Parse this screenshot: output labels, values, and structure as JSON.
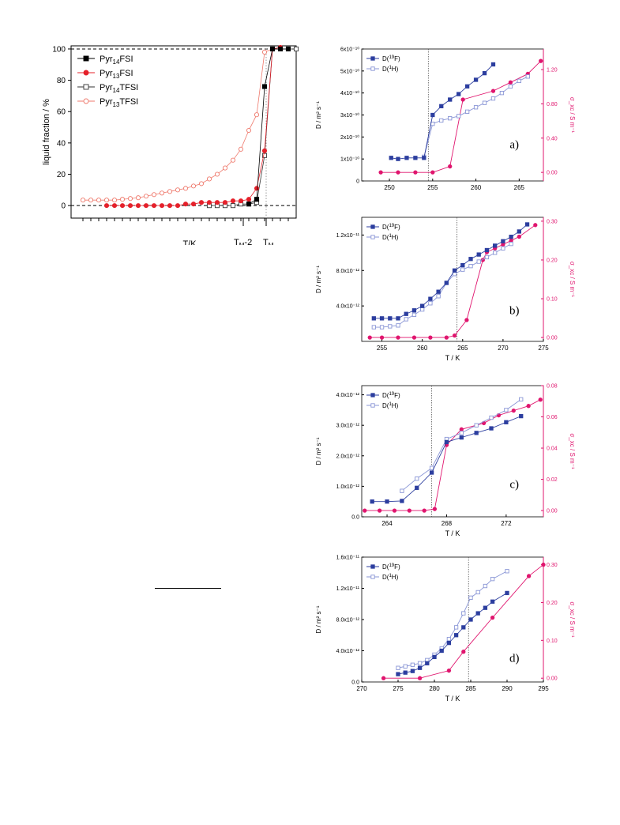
{
  "colors": {
    "black": "#000000",
    "red": "#e5202a",
    "blue": "#2c3e9f",
    "lightblue": "#8a96d6",
    "magenta": "#e0156e",
    "salmon": "#ef7a6d"
  },
  "chart_data": [
    {
      "id": "main",
      "type": "line",
      "ylabel": "liquid fraction / %",
      "xlabel": "T/K",
      "yticks": [
        0,
        20,
        40,
        60,
        80,
        100
      ],
      "ylim": [
        -8,
        102
      ],
      "x_marker_labels": {
        "tm2": "T",
        "tm2_sub": "M",
        "tm2_suffix": "-2",
        "tm": "T",
        "tm_sub": "M"
      },
      "legend": [
        "Pyr14FSI",
        "Pyr13FSI",
        "Pyr14TFSI",
        "Pyr13TFSI"
      ],
      "legend_parts": [
        {
          "pre": "Pyr",
          "sub": "14",
          "post": "FSI"
        },
        {
          "pre": "Pyr",
          "sub": "13",
          "post": "FSI"
        },
        {
          "pre": "Pyr",
          "sub": "14",
          "post": "TFSI"
        },
        {
          "pre": "Pyr",
          "sub": "13",
          "post": "TFSI"
        }
      ],
      "series": [
        {
          "name": "Pyr14FSI",
          "x": [
            21,
            22,
            23,
            24,
            25,
            26
          ],
          "y": [
            1,
            4,
            76,
            100,
            100,
            100
          ]
        },
        {
          "name": "Pyr13FSI",
          "x": [
            3,
            4,
            5,
            6,
            7,
            8,
            9,
            10,
            11,
            12,
            13,
            14,
            15,
            16,
            17,
            18,
            19,
            20,
            21,
            22,
            23,
            24,
            25
          ],
          "y": [
            0,
            0,
            0,
            0,
            0,
            0,
            0,
            0,
            0,
            0,
            1,
            1,
            2,
            2,
            2,
            2,
            3,
            3,
            4,
            11,
            35,
            100,
            101
          ]
        },
        {
          "name": "Pyr14TFSI",
          "x": [
            16,
            17,
            18,
            19,
            20,
            21,
            22,
            23,
            24,
            25,
            26,
            27
          ],
          "y": [
            0,
            0,
            0,
            0,
            1,
            1,
            2,
            32,
            100,
            100,
            100,
            100
          ]
        },
        {
          "name": "Pyr13TFSI",
          "x": [
            0,
            1,
            2,
            3,
            4,
            5,
            6,
            7,
            8,
            9,
            10,
            11,
            12,
            13,
            14,
            15,
            16,
            17,
            18,
            19,
            20,
            21,
            22,
            23,
            24,
            25
          ],
          "y": [
            3.5,
            3.5,
            3.5,
            3.5,
            3.5,
            4,
            4.5,
            5,
            6,
            7,
            8,
            9,
            10,
            11,
            12.5,
            14,
            17,
            20,
            24,
            29,
            36,
            48,
            58,
            98,
            100,
            100
          ]
        }
      ]
    },
    {
      "id": "a",
      "type": "line",
      "panel_label": "a)",
      "xlabel": "T / K",
      "ylabel": "D / m² s⁻¹",
      "y2label": "σ_xc / S m⁻¹",
      "xlim": [
        246.8,
        267.8
      ],
      "xticks": [
        250,
        255,
        260,
        265
      ],
      "ylim": [
        0,
        6e-10
      ],
      "yticks_labels": [
        "0",
        "1x10⁻¹⁰",
        "2x10⁻¹⁰",
        "3x10⁻¹⁰",
        "4x10⁻¹⁰",
        "5x10⁻¹⁰",
        "6x10⁻¹⁰"
      ],
      "yticks_values": [
        0,
        1e-10,
        2e-10,
        3e-10,
        4e-10,
        5e-10,
        6e-10
      ],
      "y2lim": [
        -0.1,
        1.44
      ],
      "y2ticks": [
        "0.00",
        "0.40",
        "0.80",
        "1.20"
      ],
      "y2ticks_values": [
        0,
        0.4,
        0.8,
        1.2
      ],
      "vline": 254.5,
      "legend": [
        "D(19F)",
        "D(1H)"
      ],
      "series": [
        {
          "name": "D(19F)",
          "x": [
            250.2,
            251,
            252,
            253,
            254,
            255,
            256,
            257,
            258,
            259,
            260,
            261,
            262
          ],
          "y": [
            1.05e-10,
            1e-10,
            1.05e-10,
            1.05e-10,
            1.05e-10,
            3e-10,
            3.4e-10,
            3.7e-10,
            3.95e-10,
            4.3e-10,
            4.6e-10,
            4.9e-10,
            5.3e-10
          ]
        },
        {
          "name": "D(1H)",
          "x": [
            254,
            255,
            256,
            257,
            258,
            259,
            260,
            261,
            262,
            263,
            264,
            265,
            266
          ],
          "y": [
            1.1e-10,
            2.6e-10,
            2.75e-10,
            2.85e-10,
            2.95e-10,
            3.15e-10,
            3.35e-10,
            3.55e-10,
            3.75e-10,
            4e-10,
            4.3e-10,
            4.55e-10,
            4.75e-10
          ]
        },
        {
          "name": "sigma",
          "x": [
            249,
            251,
            253,
            255,
            257,
            258.5,
            262,
            264,
            266,
            267.5
          ],
          "y": [
            0,
            0,
            0,
            0,
            0.07,
            0.85,
            0.95,
            1.05,
            1.15,
            1.3
          ]
        }
      ]
    },
    {
      "id": "b",
      "type": "line",
      "panel_label": "b)",
      "xlabel": "T / K",
      "ylabel": "D / m² s⁻¹",
      "y2label": "σ_xc / S m⁻¹",
      "xlim": [
        252.5,
        275
      ],
      "xticks": [
        255,
        260,
        265,
        270,
        275
      ],
      "ylim": [
        0,
        1.4e-11
      ],
      "yticks_labels": [
        "4.0x10⁻¹²",
        "8.0x10⁻¹²",
        "1.2x10⁻¹¹"
      ],
      "yticks_values": [
        4e-12,
        8e-12,
        1.2e-11
      ],
      "y2lim": [
        -0.01,
        0.31
      ],
      "y2ticks": [
        "0.00",
        "0.10",
        "0.20",
        "0.30"
      ],
      "y2ticks_values": [
        0,
        0.1,
        0.2,
        0.3
      ],
      "vline": 264.3,
      "legend": [
        "D(19F)",
        "D(1H)"
      ],
      "series": [
        {
          "name": "D(19F)",
          "x": [
            254,
            255,
            256,
            257,
            258,
            259,
            260,
            261,
            262,
            263,
            264,
            265,
            266,
            267,
            268,
            269,
            270,
            271,
            272,
            273
          ],
          "y": [
            2.6e-12,
            2.6e-12,
            2.6e-12,
            2.6e-12,
            3.1e-12,
            3.5e-12,
            4e-12,
            4.8e-12,
            5.6e-12,
            6.6e-12,
            8e-12,
            8.6e-12,
            9.3e-12,
            9.8e-12,
            1.03e-11,
            1.08e-11,
            1.13e-11,
            1.18e-11,
            1.24e-11,
            1.32e-11
          ]
        },
        {
          "name": "D(1H)",
          "x": [
            254,
            255,
            256,
            257,
            258,
            259,
            260,
            261,
            262,
            263,
            264,
            265,
            266,
            267,
            268,
            269,
            270,
            271
          ],
          "y": [
            1.6e-12,
            1.6e-12,
            1.7e-12,
            1.8e-12,
            2.5e-12,
            3e-12,
            3.6e-12,
            4.3e-12,
            5.1e-12,
            6.6e-12,
            7.6e-12,
            8.1e-12,
            8.5e-12,
            9e-12,
            9.5e-12,
            1e-11,
            1.05e-11,
            1.1e-11
          ]
        },
        {
          "name": "sigma",
          "x": [
            253.5,
            255,
            257,
            259,
            261,
            263,
            264,
            265.5,
            267.5,
            268,
            269,
            270,
            271,
            272,
            274
          ],
          "y": [
            0,
            0,
            0,
            0,
            0,
            0,
            0.005,
            0.045,
            0.2,
            0.22,
            0.23,
            0.24,
            0.25,
            0.26,
            0.29
          ]
        }
      ]
    },
    {
      "id": "c",
      "type": "line",
      "panel_label": "c)",
      "xlabel": "T / K",
      "ylabel": "D / m² s⁻¹",
      "y2label": "σ_xc / S m⁻¹",
      "xlim": [
        262.3,
        274.5
      ],
      "xticks": [
        264,
        268,
        272
      ],
      "ylim": [
        0,
        4.3e-12
      ],
      "yticks_labels": [
        "0.0",
        "1.0x10⁻¹²",
        "2.0x10⁻¹²",
        "3.0x10⁻¹²",
        "4.0x10⁻¹²"
      ],
      "yticks_values": [
        0,
        1e-12,
        2e-12,
        3e-12,
        4e-12
      ],
      "y2lim": [
        -0.004,
        0.08
      ],
      "y2ticks": [
        "0.00",
        "0.02",
        "0.04",
        "0.06",
        "0.08"
      ],
      "y2ticks_values": [
        0,
        0.02,
        0.04,
        0.06,
        0.08
      ],
      "vline": 267,
      "legend": [
        "D(19F)",
        "D(1H)"
      ],
      "series": [
        {
          "name": "D(19F)",
          "x": [
            263,
            264,
            265,
            266,
            267,
            268,
            269,
            270,
            271,
            272,
            273
          ],
          "y": [
            5e-13,
            5e-13,
            5.2e-13,
            9.5e-13,
            1.45e-12,
            2.45e-12,
            2.6e-12,
            2.75e-12,
            2.9e-12,
            3.1e-12,
            3.3e-12
          ]
        },
        {
          "name": "D(1H)",
          "x": [
            265,
            266,
            267,
            268,
            269,
            270,
            271,
            272,
            273
          ],
          "y": [
            8.5e-13,
            1.25e-12,
            1.6e-12,
            2.55e-12,
            2.75e-12,
            3e-12,
            3.25e-12,
            3.5e-12,
            3.85e-12
          ]
        },
        {
          "name": "sigma",
          "x": [
            262.5,
            263.5,
            264.5,
            265.5,
            266.5,
            267.2,
            268,
            269,
            270.5,
            271.5,
            272.5,
            273.5,
            274.3
          ],
          "y": [
            0,
            0,
            0,
            0,
            0,
            0.001,
            0.042,
            0.052,
            0.056,
            0.061,
            0.064,
            0.067,
            0.071
          ]
        }
      ]
    },
    {
      "id": "d",
      "type": "line",
      "panel_label": "d)",
      "xlabel": "T / K",
      "ylabel": "D / m² s⁻¹",
      "y2label": "σ_xc / S m⁻¹",
      "xlim": [
        270,
        295
      ],
      "xticks": [
        270,
        275,
        280,
        285,
        290,
        295
      ],
      "ylim": [
        0,
        1.6e-11
      ],
      "yticks_labels": [
        "0.0",
        "4.0x10⁻¹²",
        "8.0x10⁻¹²",
        "1.2x10⁻¹¹",
        "1.6x10⁻¹¹"
      ],
      "yticks_values": [
        0,
        4e-12,
        8e-12,
        1.2e-11,
        1.6e-11
      ],
      "y2lim": [
        -0.01,
        0.32
      ],
      "y2ticks": [
        "0.00",
        "0.10",
        "0.20",
        "0.30"
      ],
      "y2ticks_values": [
        0,
        0.1,
        0.2,
        0.3
      ],
      "vline": 284.7,
      "legend": [
        "D(19F)",
        "D(1H)"
      ],
      "series": [
        {
          "name": "D(19F)",
          "x": [
            275,
            276,
            277,
            278,
            279,
            280,
            281,
            282,
            283,
            284,
            285,
            286,
            287,
            288,
            290
          ],
          "y": [
            1e-12,
            1.2e-12,
            1.4e-12,
            1.8e-12,
            2.4e-12,
            3.2e-12,
            4e-12,
            5e-12,
            6e-12,
            7e-12,
            8e-12,
            8.8e-12,
            9.5e-12,
            1.03e-11,
            1.14e-11
          ]
        },
        {
          "name": "D(1H)",
          "x": [
            275,
            276,
            277,
            278,
            279,
            280,
            281,
            282,
            283,
            284,
            285,
            286,
            287,
            288,
            290
          ],
          "y": [
            1.8e-12,
            2e-12,
            2.2e-12,
            2.4e-12,
            2.8e-12,
            3.5e-12,
            4.3e-12,
            5.5e-12,
            7e-12,
            8.8e-12,
            1.08e-11,
            1.15e-11,
            1.23e-11,
            1.32e-11,
            1.42e-11
          ]
        },
        {
          "name": "sigma",
          "x": [
            273,
            278,
            282,
            284,
            288,
            293,
            295
          ],
          "y": [
            0,
            0,
            0.02,
            0.07,
            0.16,
            0.27,
            0.3
          ]
        }
      ]
    }
  ]
}
